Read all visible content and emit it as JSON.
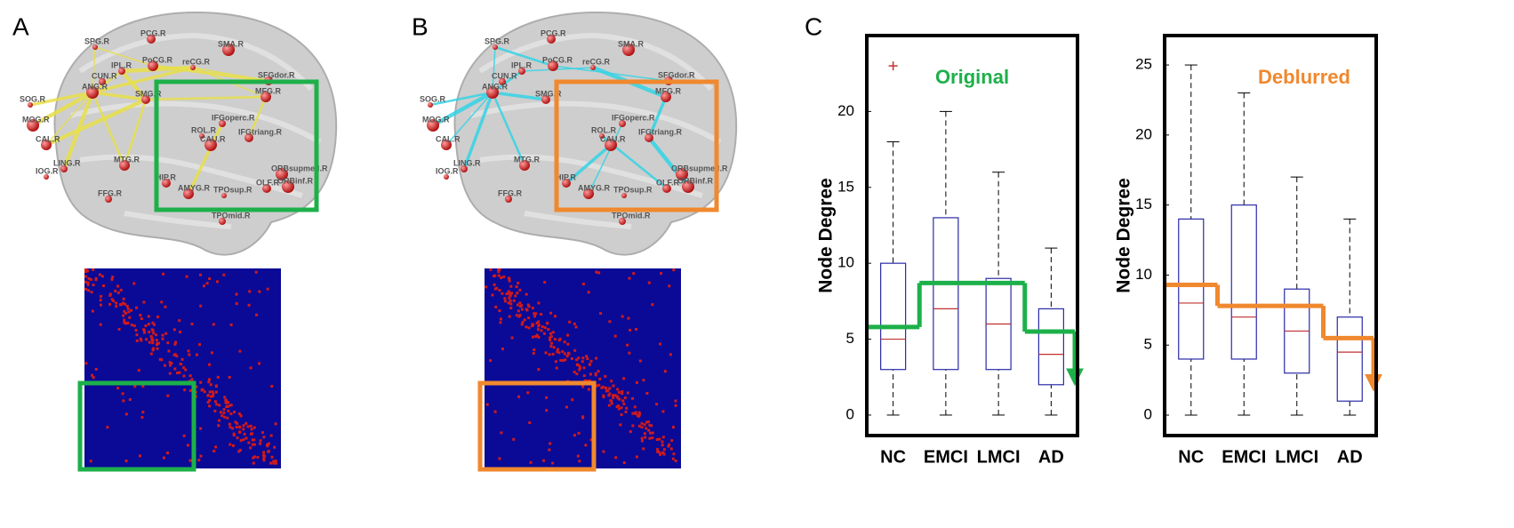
{
  "panel_labels": [
    "A",
    "B",
    "C"
  ],
  "brain_labels": [
    "SPG.R",
    "PCG.R",
    "SMA.R",
    "IPL.R",
    "PoCG.R",
    "reCG.R",
    "SFGdor.R",
    "ANG.R",
    "CUN.R",
    "MFG.R",
    "SOG.R",
    "SMG.R",
    "MOG.R",
    "IFGoperc.R",
    "CAL.R",
    "ROL.R",
    "IFGtriang.R",
    "CAU.R",
    "LING.R",
    "MTG.R",
    "IOG.R",
    "HIP.R",
    "ORBsupmed.R",
    "FFG.R",
    "AMYG.R",
    "TPOsup.R",
    "OLF.R",
    "ORBinf.R",
    "TPOmid.R"
  ],
  "chart_data": [
    {
      "type": "box",
      "title": "Original",
      "title_color": "#1db04a",
      "ylabel": "Node Degree",
      "categories": [
        "NC",
        "EMCI",
        "LMCI",
        "AD"
      ],
      "boxes": [
        {
          "min": 0,
          "q1": 3,
          "median": 5,
          "q3": 10,
          "max": 18,
          "outliers": [
            23
          ]
        },
        {
          "min": 0,
          "q1": 3,
          "median": 7,
          "q3": 13,
          "max": 20,
          "outliers": []
        },
        {
          "min": 0,
          "q1": 3,
          "median": 6,
          "q3": 9,
          "max": 16,
          "outliers": []
        },
        {
          "min": 0,
          "q1": 2,
          "median": 4,
          "q3": 7,
          "max": 11,
          "outliers": []
        }
      ],
      "trend": [
        5.8,
        8.7,
        8.7,
        5.5
      ],
      "trend_end": 2.5,
      "trend_color": "#1db04a",
      "box_color": "#2a2aa8",
      "median_color": "#c03030",
      "ylim": [
        -1.35,
        25
      ],
      "yticks": [
        0,
        5,
        10,
        15,
        20
      ]
    },
    {
      "type": "box",
      "title": "Deblurred",
      "title_color": "#f0882e",
      "ylabel": "Node Degree",
      "categories": [
        "NC",
        "EMCI",
        "LMCI",
        "AD"
      ],
      "boxes": [
        {
          "min": 0,
          "q1": 4,
          "median": 8,
          "q3": 14,
          "max": 25,
          "outliers": []
        },
        {
          "min": 0,
          "q1": 4,
          "median": 7,
          "q3": 15,
          "max": 23,
          "outliers": []
        },
        {
          "min": 0,
          "q1": 3,
          "median": 6,
          "q3": 9,
          "max": 17,
          "outliers": []
        },
        {
          "min": 0,
          "q1": 1,
          "median": 4.5,
          "q3": 7,
          "max": 14,
          "outliers": []
        }
      ],
      "trend": [
        9.3,
        7.8,
        7.8,
        5.5
      ],
      "trend_end": 2.3,
      "trend_color": "#f0882e",
      "box_color": "#2a2aa8",
      "median_color": "#c03030",
      "ylim": [
        -1.46,
        27.1
      ],
      "yticks": [
        0,
        5,
        10,
        15,
        20,
        25
      ]
    }
  ]
}
